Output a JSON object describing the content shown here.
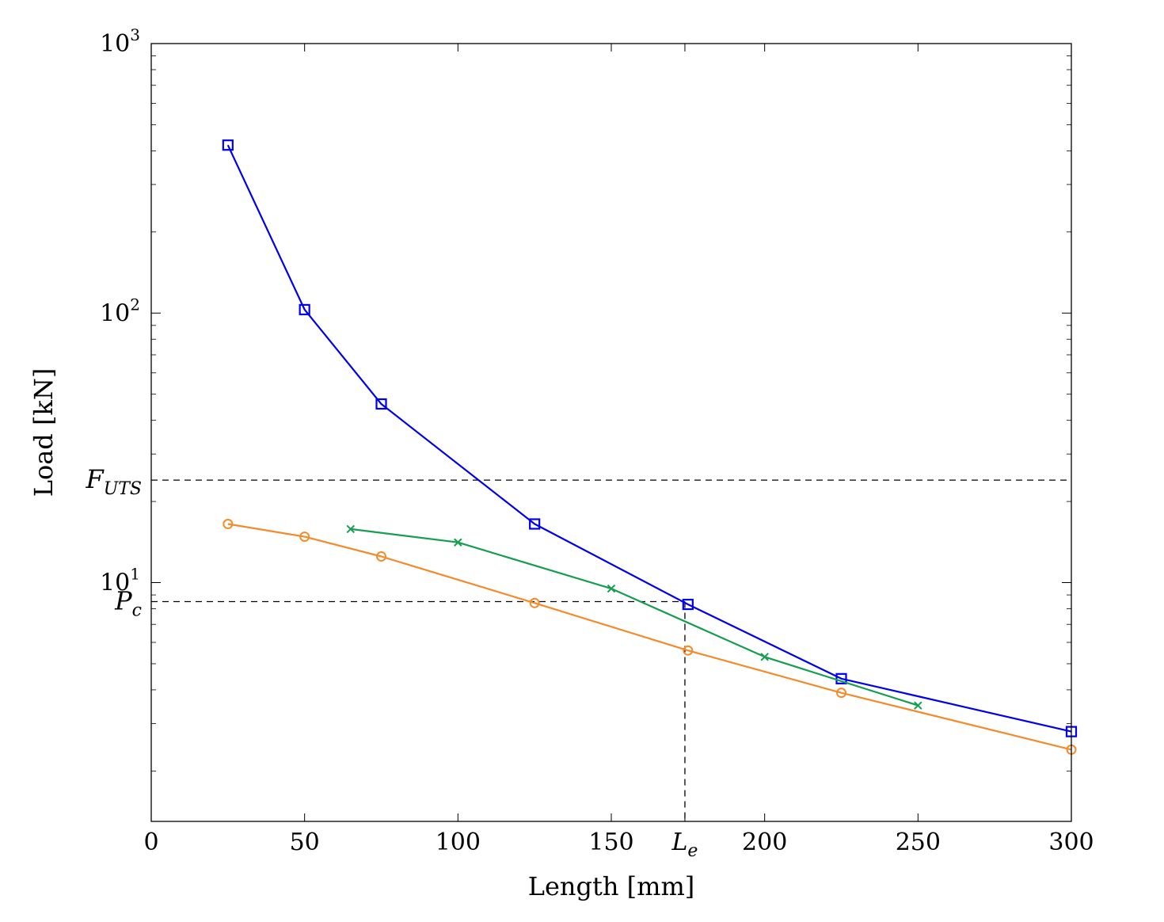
{
  "chart_data": {
    "type": "line",
    "title": "",
    "xlabel": "Length [mm]",
    "ylabel": "Load [kN]",
    "xlim": [
      0,
      300
    ],
    "ylim": [
      1.3,
      1000
    ],
    "y_scale": "log",
    "grid": false,
    "x_ticks": [
      {
        "value": 0,
        "label": "0"
      },
      {
        "value": 50,
        "label": "50"
      },
      {
        "value": 100,
        "label": "100"
      },
      {
        "value": 150,
        "label": "150"
      },
      {
        "value": 174,
        "label": "L",
        "sub": "e",
        "italic": true
      },
      {
        "value": 200,
        "label": "200"
      },
      {
        "value": 250,
        "label": "250"
      },
      {
        "value": 300,
        "label": "300"
      }
    ],
    "y_ticks": [
      {
        "value": 10,
        "base": "10",
        "exp": "1"
      },
      {
        "value": 100,
        "base": "10",
        "exp": "2"
      },
      {
        "value": 1000,
        "base": "10",
        "exp": "3"
      }
    ],
    "reference_lines": [
      {
        "axis": "y",
        "value": 24,
        "label": "F",
        "sub": "UTS",
        "x_end": 300
      },
      {
        "axis": "y",
        "value": 8.5,
        "label": "P",
        "sub": "c",
        "x_end": 174
      },
      {
        "axis": "x",
        "value": 174,
        "y_end": 8.5
      }
    ],
    "series": [
      {
        "color": "#0000ee",
        "marker": "square",
        "x": [
          25,
          50,
          75,
          125,
          175,
          225,
          300
        ],
        "y": [
          420,
          103,
          46,
          16.5,
          8.3,
          4.4,
          2.8
        ]
      },
      {
        "color": "#f58a2a",
        "marker": "circle",
        "x": [
          25,
          50,
          75,
          125,
          175,
          225,
          300
        ],
        "y": [
          16.5,
          14.8,
          12.5,
          8.4,
          5.6,
          3.9,
          2.4
        ]
      },
      {
        "color": "#159e4f",
        "marker": "x",
        "x": [
          65,
          100,
          150,
          200,
          250
        ],
        "y": [
          15.8,
          14.1,
          9.5,
          5.3,
          3.5
        ]
      }
    ]
  }
}
